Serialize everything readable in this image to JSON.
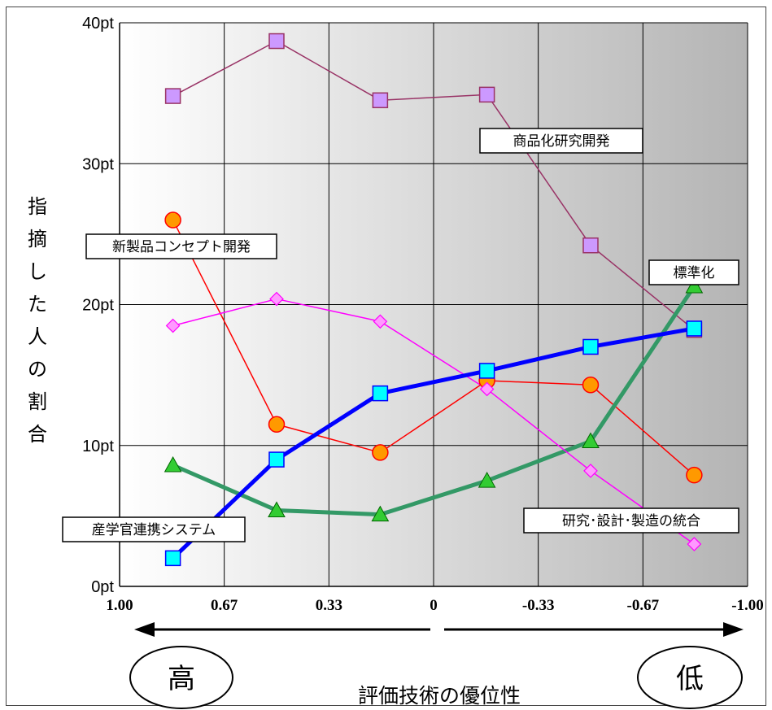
{
  "chart_data": {
    "type": "line",
    "y_label": "指摘した人の割合",
    "y_ticks": [
      "0pt",
      "10pt",
      "20pt",
      "30pt",
      "40pt"
    ],
    "ylim": [
      0,
      40
    ],
    "x_label": "評価技術の優位性",
    "x_ticks": [
      "1.00",
      "0.67",
      "0.33",
      "0",
      "-0.33",
      "-0.67",
      "-1.00"
    ],
    "xlim": [
      1.0,
      -1.0
    ],
    "x": [
      0.83,
      0.5,
      0.17,
      -0.17,
      -0.5,
      -0.83
    ],
    "high_label": "高",
    "low_label": "低",
    "grid": true,
    "series": [
      {
        "name": "商品化研究開発",
        "color": "#993366",
        "marker": "square",
        "marker_color": "#cc99ff",
        "values": [
          34.8,
          38.7,
          34.5,
          34.9,
          24.2,
          18.2
        ]
      },
      {
        "name": "新製品コンセプト開発",
        "color": "#ff0000",
        "marker": "circle",
        "marker_color": "#ff9900",
        "values": [
          26.0,
          11.5,
          9.5,
          14.6,
          14.3,
          7.9
        ]
      },
      {
        "name": "標準化",
        "color": "#339966",
        "marker": "triangle",
        "marker_color": "#33cc33",
        "values": [
          8.6,
          5.4,
          5.1,
          7.5,
          10.3,
          21.3
        ]
      },
      {
        "name": "研究･設計･製造の統合",
        "color": "#ff00ff",
        "marker": "diamond",
        "marker_color": "#ff99ff",
        "values": [
          18.5,
          20.4,
          18.8,
          14.0,
          8.2,
          3.0
        ]
      },
      {
        "name": "産学官連携システム",
        "color": "#0000ff",
        "marker": "square",
        "marker_color": "#00ffff",
        "values": [
          2.0,
          9.0,
          13.7,
          15.3,
          17.0,
          18.3
        ]
      }
    ]
  }
}
